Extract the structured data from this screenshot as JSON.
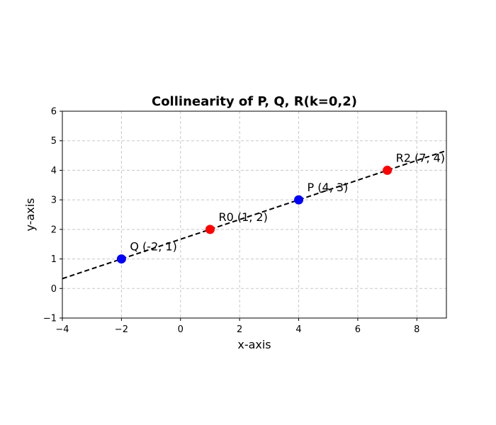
{
  "chart_data": {
    "type": "scatter",
    "title": "Collinearity of P, Q, R(k=0,2)",
    "xlabel": "x-axis",
    "ylabel": "y-axis",
    "xlim": [
      -4,
      9
    ],
    "ylim": [
      -1,
      6
    ],
    "xticks": [
      -4,
      -2,
      0,
      2,
      4,
      6,
      8
    ],
    "yticks": [
      -1,
      0,
      1,
      2,
      3,
      4,
      5,
      6
    ],
    "grid": true,
    "line": {
      "style": "dashed",
      "color": "#000000",
      "slope": 0.3333333,
      "intercept": 1.6666667
    },
    "points": [
      {
        "label": "Q (-2, 1)",
        "x": -2,
        "y": 1,
        "color": "#0000ff"
      },
      {
        "label": "R0 (1, 2)",
        "x": 1,
        "y": 2,
        "color": "#ff0000"
      },
      {
        "label": "P (4, 3)",
        "x": 4,
        "y": 3,
        "color": "#0000ff"
      },
      {
        "label": "R2 (7, 4)",
        "x": 7,
        "y": 4,
        "color": "#ff0000"
      }
    ]
  }
}
